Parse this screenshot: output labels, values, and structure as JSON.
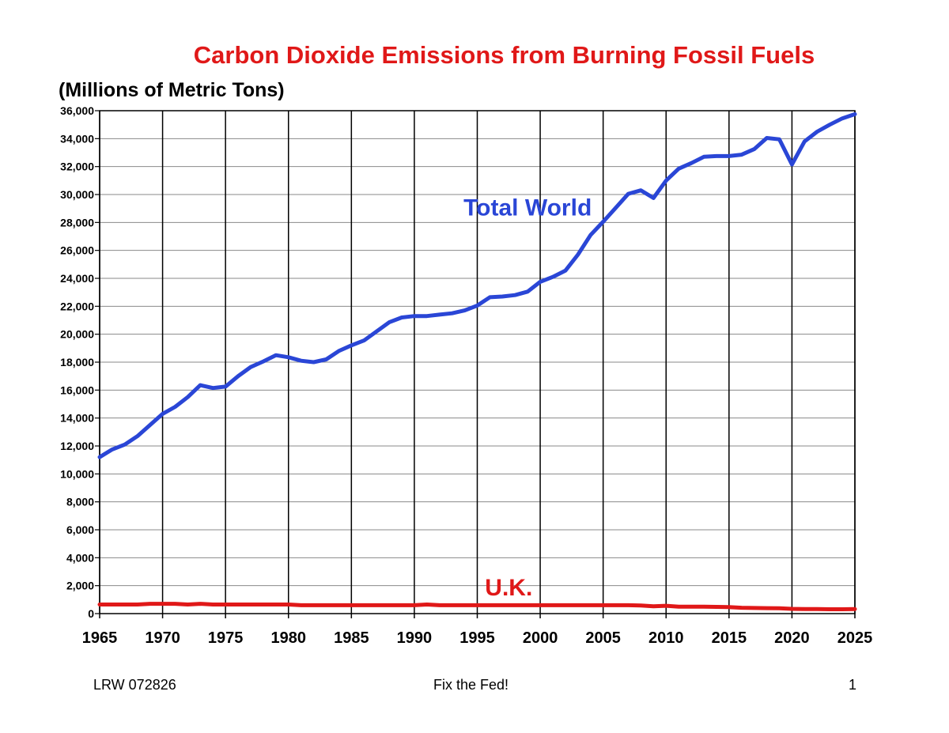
{
  "page": {
    "footer_left": "LRW 072826",
    "footer_center": "Fix the Fed!",
    "footer_right": "1"
  },
  "chart_data": {
    "type": "line",
    "title": "Carbon Dioxide Emissions from Burning Fossil Fuels",
    "ylabel": "(Millions of Metric Tons)",
    "xlabel": "",
    "xlim": [
      1965,
      2025
    ],
    "ylim": [
      0,
      36000
    ],
    "x_ticks": [
      1965,
      1970,
      1975,
      1980,
      1985,
      1990,
      1995,
      2000,
      2005,
      2010,
      2015,
      2020,
      2025
    ],
    "x_tick_labels": [
      "1965",
      "1970",
      "1975",
      "1980",
      "1985",
      "1990",
      "1995",
      "2000",
      "2005",
      "2010",
      "2015",
      "2020",
      "2025"
    ],
    "y_ticks": [
      0,
      2000,
      4000,
      6000,
      8000,
      10000,
      12000,
      14000,
      16000,
      18000,
      20000,
      22000,
      24000,
      26000,
      28000,
      30000,
      32000,
      34000,
      36000
    ],
    "y_tick_labels": [
      "0",
      "2,000",
      "4,000",
      "6,000",
      "8,000",
      "10,000",
      "12,000",
      "14,000",
      "16,000",
      "18,000",
      "20,000",
      "22,000",
      "24,000",
      "26,000",
      "28,000",
      "30,000",
      "32,000",
      "34,000",
      "36,000"
    ],
    "grid": {
      "horizontal": true,
      "vertical_major": true
    },
    "series": [
      {
        "name": "Total World",
        "color": "#2a46d6",
        "x": [
          1965,
          1966,
          1967,
          1968,
          1969,
          1970,
          1971,
          1972,
          1973,
          1974,
          1975,
          1976,
          1977,
          1978,
          1979,
          1980,
          1981,
          1982,
          1983,
          1984,
          1985,
          1986,
          1987,
          1988,
          1989,
          1990,
          1991,
          1992,
          1993,
          1994,
          1995,
          1996,
          1997,
          1998,
          1999,
          2000,
          2001,
          2002,
          2003,
          2004,
          2005,
          2006,
          2007,
          2008,
          2009,
          2010,
          2011,
          2012,
          2013,
          2014,
          2015,
          2016,
          2017,
          2018,
          2019,
          2020,
          2021,
          2022,
          2023,
          2024,
          2025
        ],
        "values": [
          11200,
          11750,
          12100,
          12700,
          13500,
          14300,
          14800,
          15500,
          16350,
          16150,
          16250,
          17000,
          17650,
          18050,
          18500,
          18350,
          18100,
          18000,
          18200,
          18800,
          19200,
          19550,
          20200,
          20850,
          21200,
          21300,
          21300,
          21400,
          21500,
          21700,
          22050,
          22650,
          22700,
          22800,
          23050,
          23750,
          24100,
          24550,
          25700,
          27100,
          28050,
          29050,
          30050,
          30300,
          29750,
          31000,
          31850,
          32250,
          32700,
          32750,
          32750,
          32850,
          33250,
          34050,
          33950,
          32150,
          33800,
          34500,
          35000,
          35450,
          35750
        ]
      },
      {
        "name": "U.K.",
        "color": "#e01818",
        "x": [
          1965,
          1966,
          1967,
          1968,
          1969,
          1970,
          1971,
          1972,
          1973,
          1974,
          1975,
          1976,
          1977,
          1978,
          1979,
          1980,
          1981,
          1982,
          1983,
          1984,
          1985,
          1986,
          1987,
          1988,
          1989,
          1990,
          1991,
          1992,
          1993,
          1994,
          1995,
          1996,
          1997,
          1998,
          1999,
          2000,
          2001,
          2002,
          2003,
          2004,
          2005,
          2006,
          2007,
          2008,
          2009,
          2010,
          2011,
          2012,
          2013,
          2014,
          2015,
          2016,
          2017,
          2018,
          2019,
          2020,
          2021,
          2022,
          2023,
          2024,
          2025
        ],
        "values": [
          650,
          650,
          650,
          650,
          700,
          700,
          700,
          650,
          700,
          650,
          650,
          650,
          650,
          650,
          650,
          650,
          600,
          600,
          600,
          600,
          600,
          600,
          600,
          600,
          600,
          600,
          650,
          600,
          600,
          600,
          600,
          600,
          600,
          600,
          600,
          600,
          600,
          600,
          600,
          600,
          600,
          600,
          600,
          580,
          520,
          560,
          500,
          500,
          490,
          480,
          470,
          420,
          400,
          390,
          380,
          340,
          330,
          320,
          310,
          310,
          320
        ]
      }
    ],
    "annotations": [
      {
        "text": "Total World",
        "series": "Total World",
        "color": "#2a46d6",
        "x": 1999,
        "y": 28500
      },
      {
        "text": "U.K.",
        "series": "U.K.",
        "color": "#e01818",
        "x": 1997.5,
        "y": 1300
      }
    ]
  }
}
